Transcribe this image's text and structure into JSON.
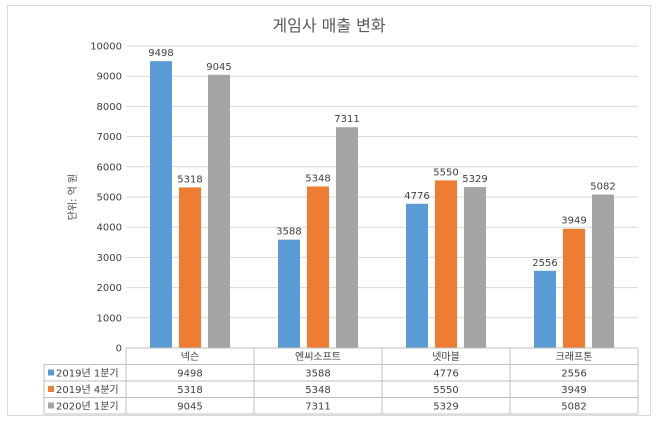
{
  "chart_data": {
    "type": "bar",
    "title": "게임사 매출 변화",
    "ylabel": "단위: 억 원",
    "ylim": [
      0,
      10000
    ],
    "yticks": [
      0,
      1000,
      2000,
      3000,
      4000,
      5000,
      6000,
      7000,
      8000,
      9000,
      10000
    ],
    "categories": [
      "넥슨",
      "엔씨소프트",
      "넷마블",
      "크래프톤"
    ],
    "series": [
      {
        "name": "2019년 1분기",
        "color": "#5b9bd5",
        "values": [
          9498,
          3588,
          4776,
          2556
        ]
      },
      {
        "name": "2019년 4분기",
        "color": "#ed7d31",
        "values": [
          5318,
          5348,
          5550,
          3949
        ]
      },
      {
        "name": "2020년 1분기",
        "color": "#a5a5a5",
        "values": [
          9045,
          7311,
          5329,
          5082
        ]
      }
    ],
    "grid": true,
    "legend": "data-table"
  }
}
